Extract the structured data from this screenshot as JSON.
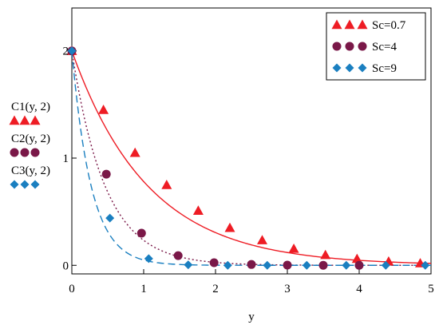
{
  "chart_data": {
    "type": "line",
    "xlabel": "y",
    "xlim": [
      0,
      5
    ],
    "ylim": [
      -0.08,
      2.4
    ],
    "x_ticks": [
      "0",
      "1",
      "2",
      "3",
      "4",
      "5"
    ],
    "y_ticks": [
      "0",
      "1",
      "2"
    ],
    "grid": false,
    "legend_position": "top-right",
    "series": [
      {
        "name": "Sc=0.7",
        "side_label": "C1(y, 2)",
        "color": "#ee1c24",
        "marker": "triangle",
        "line_style": "solid",
        "decay": 0.94,
        "marker_x": [
          0,
          0.44,
          0.88,
          1.32,
          1.76,
          2.2,
          2.65,
          3.09,
          3.53,
          3.97,
          4.41,
          4.85
        ],
        "marker_y": [
          2.0,
          1.45,
          1.05,
          0.75,
          0.51,
          0.35,
          0.235,
          0.155,
          0.097,
          0.061,
          0.036,
          0.02
        ]
      },
      {
        "name": "Sc=4",
        "side_label": "C2(y, 2)",
        "color": "#7a1848",
        "marker": "circle",
        "line_style": "dotted",
        "decay": 2.15,
        "marker_x": [
          0,
          0.48,
          0.97,
          1.48,
          1.98,
          2.5,
          3.0,
          3.5,
          4.0
        ],
        "marker_y": [
          2.0,
          0.85,
          0.3,
          0.09,
          0.024,
          0.008,
          0.002,
          0.0,
          0.0
        ]
      },
      {
        "name": "Sc=9",
        "side_label": "C3(y, 2)",
        "color": "#1a7fc0",
        "marker": "diamond",
        "line_style": "dashed",
        "decay": 3.7,
        "marker_x": [
          0,
          0.53,
          1.07,
          1.62,
          2.17,
          2.72,
          3.27,
          3.82,
          4.37,
          4.92
        ],
        "marker_y": [
          2.0,
          0.44,
          0.062,
          0.005,
          0.0,
          0.0,
          0.0,
          0.0,
          0.0,
          0.0
        ]
      }
    ]
  }
}
